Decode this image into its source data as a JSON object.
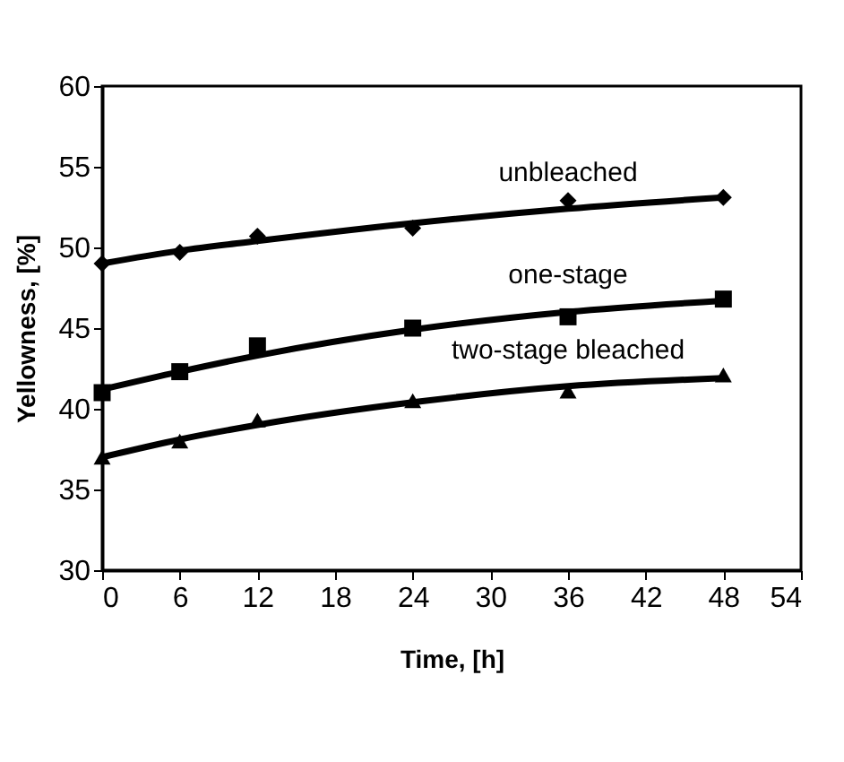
{
  "chart_data": {
    "type": "scatter",
    "xlabel": "Time, [h]",
    "ylabel": "Yellowness, [%]",
    "x": [
      0,
      6,
      12,
      24,
      36,
      48
    ],
    "xlim": [
      0,
      54
    ],
    "xticks": [
      0,
      6,
      12,
      18,
      24,
      30,
      36,
      42,
      48,
      54
    ],
    "ylim": [
      30,
      60
    ],
    "yticks": [
      30,
      35,
      40,
      45,
      50,
      55,
      60
    ],
    "grid": false,
    "series": [
      {
        "name": "unbleached",
        "color": "#000000",
        "marker": "diamond",
        "values": [
          49.0,
          49.7,
          50.7,
          51.2,
          52.9,
          53.1
        ]
      },
      {
        "name": "one-stage",
        "color": "#000000",
        "marker": "square",
        "values": [
          41.0,
          42.3,
          43.9,
          45.0,
          45.7,
          46.8
        ]
      },
      {
        "name": "two-stage bleached",
        "color": "#000000",
        "marker": "triangle",
        "values": [
          37.0,
          38.0,
          39.3,
          40.5,
          41.1,
          42.1
        ]
      },
      {
        "type": "line",
        "color": "#000000",
        "marker": "none",
        "x": [
          0,
          6,
          12,
          24,
          36,
          48
        ],
        "values": [
          49.0,
          49.8,
          50.4,
          51.5,
          52.4,
          53.1
        ]
      },
      {
        "type": "line",
        "color": "#000000",
        "marker": "none",
        "x": [
          0,
          6,
          12,
          24,
          36,
          48
        ],
        "values": [
          41.2,
          42.3,
          43.3,
          44.9,
          46.0,
          46.7
        ]
      },
      {
        "type": "line",
        "color": "#000000",
        "marker": "none",
        "x": [
          0,
          6,
          12,
          24,
          36,
          48
        ],
        "values": [
          37.0,
          38.1,
          39.0,
          40.4,
          41.4,
          41.9
        ]
      }
    ]
  }
}
